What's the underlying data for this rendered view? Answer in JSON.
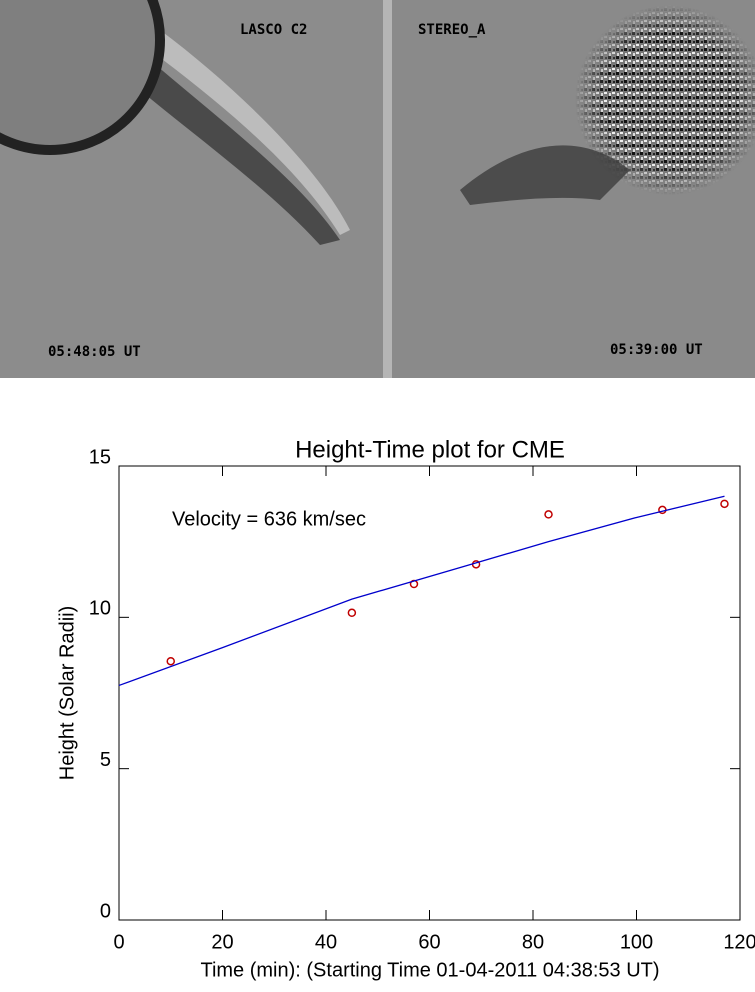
{
  "images": [
    {
      "label": "LASCO C2",
      "time": "05:48:05 UT"
    },
    {
      "label": "STEREO_A",
      "time": "05:39:00 UT"
    }
  ],
  "chart_data": {
    "type": "scatter",
    "title": "Height-Time plot for CME",
    "x_label": "Time (min): (Starting Time 01-04-2011 04:38:53 UT)",
    "y_label": "Height (Solar Radii)",
    "annotation": "Velocity = 636 km/sec",
    "xlim": [
      0,
      120
    ],
    "xticks": [
      0,
      20,
      40,
      60,
      80,
      100,
      120
    ],
    "ylim": [
      0,
      15
    ],
    "yticks": [
      0,
      5,
      10,
      15
    ],
    "series": [
      {
        "type": "scatter",
        "color": "#c00000",
        "x": [
          10,
          45,
          57,
          69,
          83,
          105,
          117
        ],
        "values": [
          8.55,
          10.15,
          11.1,
          11.75,
          13.4,
          13.55,
          13.75
        ]
      },
      {
        "type": "line",
        "color": "#0000cc",
        "x": [
          0,
          20,
          45,
          69,
          83,
          100,
          117
        ],
        "values": [
          7.75,
          9.0,
          10.6,
          11.8,
          12.5,
          13.3,
          14.0
        ]
      }
    ]
  }
}
